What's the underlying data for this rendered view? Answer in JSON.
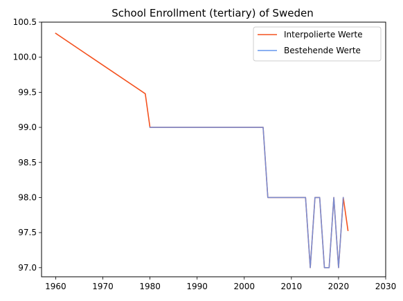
{
  "chart_data": {
    "type": "line",
    "title": "School Enrollment (tertiary) of Sweden",
    "xlabel": "",
    "ylabel": "",
    "xlim": [
      1957,
      2030
    ],
    "ylim": [
      96.87,
      100.5
    ],
    "xticks": [
      1960,
      1970,
      1980,
      1990,
      2000,
      2010,
      2020,
      2030
    ],
    "yticks": [
      97.0,
      97.5,
      98.0,
      98.5,
      99.0,
      99.5,
      100.0,
      100.5
    ],
    "ytick_labels": [
      "97.0",
      "97.5",
      "98.0",
      "98.5",
      "99.0",
      "99.5",
      "100.0",
      "100.5"
    ],
    "grid": false,
    "legend_position": "top-right",
    "series": [
      {
        "name": "Interpolierte Werte",
        "color": "#f4511e",
        "x": [
          1960,
          1979,
          1980,
          2004,
          2005,
          2013,
          2014,
          2015,
          2016,
          2017,
          2018,
          2019,
          2020,
          2021,
          2022
        ],
        "y": [
          100.34,
          99.48,
          99.0,
          99.0,
          98.0,
          98.0,
          97.0,
          98.0,
          98.0,
          97.0,
          97.0,
          98.0,
          97.0,
          98.0,
          97.53
        ]
      },
      {
        "name": "Bestehende Werte",
        "color": "#6495ed",
        "x": [
          1980,
          2004,
          2005,
          2013,
          2014,
          2015,
          2016,
          2017,
          2018,
          2019,
          2020,
          2021
        ],
        "y": [
          99.0,
          99.0,
          98.0,
          98.0,
          97.0,
          98.0,
          98.0,
          97.0,
          97.0,
          98.0,
          97.0,
          98.0
        ]
      }
    ]
  }
}
